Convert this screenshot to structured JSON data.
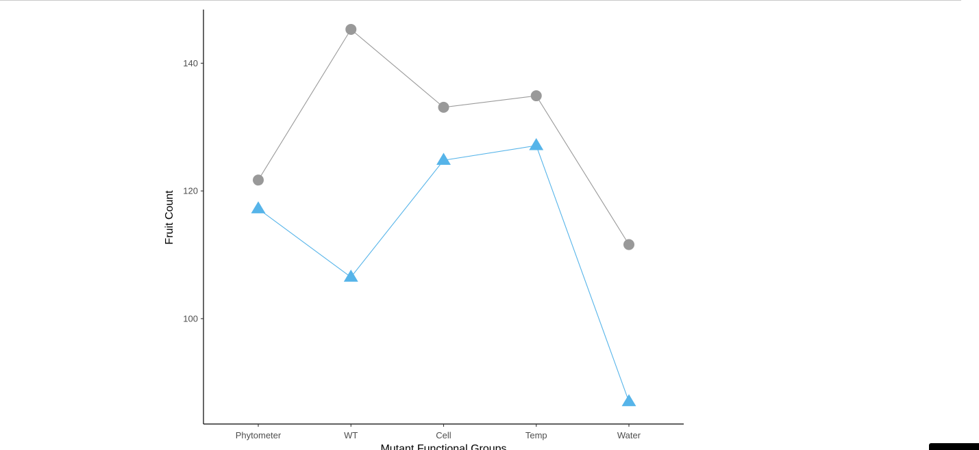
{
  "chart_data": {
    "type": "line",
    "categories": [
      "Phytometer",
      "WT",
      "Cell",
      "Temp",
      "Water"
    ],
    "series": [
      {
        "values": [
          121.7,
          145.3,
          133.1,
          134.9,
          111.6
        ],
        "color": "#999999",
        "marker": "circle"
      },
      {
        "values": [
          117.2,
          106.5,
          124.8,
          127.1,
          87.0
        ],
        "color": "#56B4E9",
        "marker": "triangle"
      }
    ],
    "xlabel": "Mutant Functional Groups",
    "ylabel": "Fruit Count",
    "yticks": [
      100,
      120,
      140
    ],
    "ylim": [
      83.5,
      148.4
    ],
    "grid": false,
    "legend": "none"
  }
}
